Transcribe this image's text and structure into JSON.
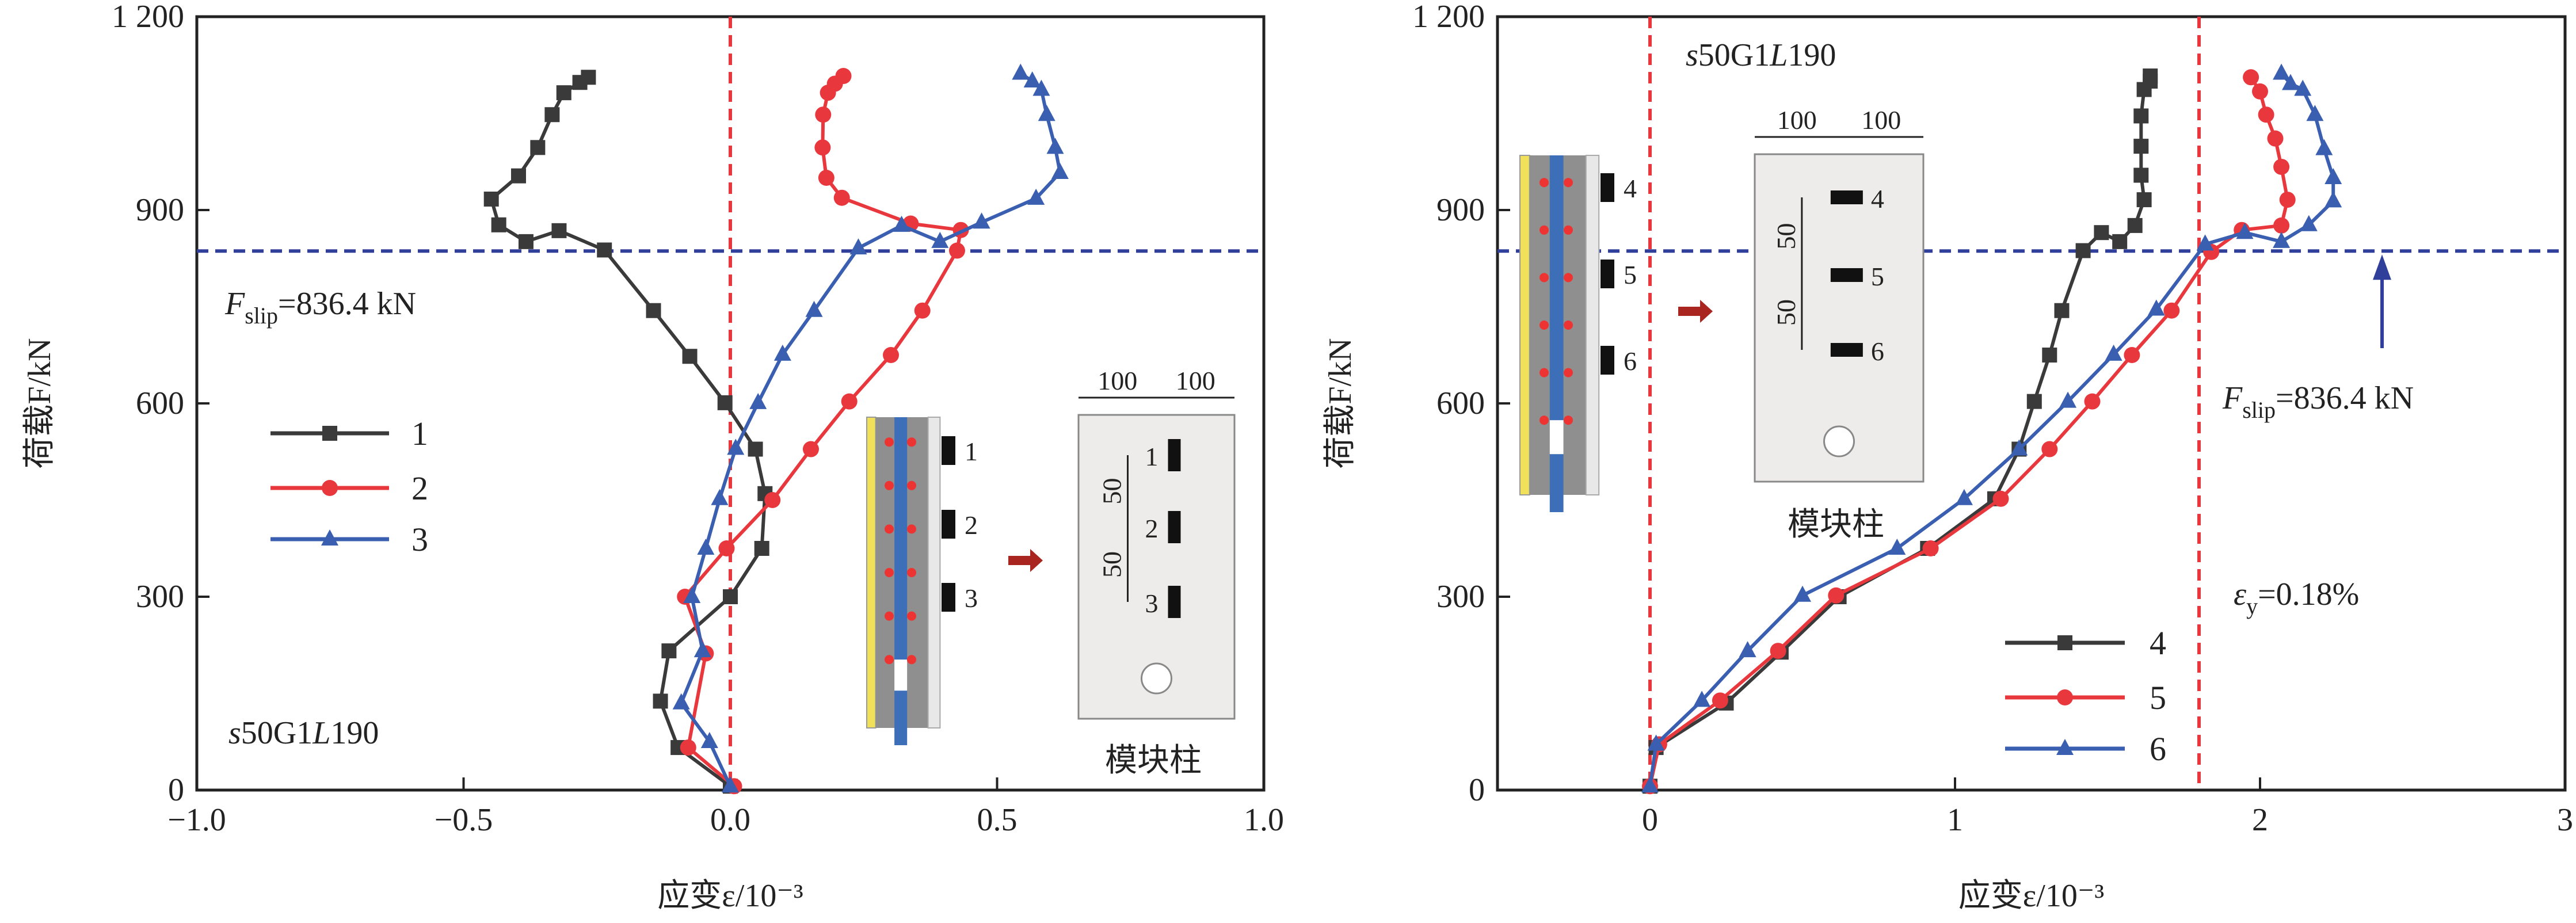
{
  "colors": {
    "series1": "#3a3a3a",
    "series2": "#e8383d",
    "series3": "#3a5fb0",
    "ref_vertical": "#e8383d",
    "ref_horizontal": "#2f3f9a"
  },
  "chart_data": [
    {
      "type": "line",
      "xlabel": "应变ε/10⁻³",
      "ylabel": "荷载F/kN",
      "xlim": [
        -1.0,
        1.0
      ],
      "ylim": [
        0,
        1200
      ],
      "xticks": [
        "−1.0",
        "−0.5",
        "0.0",
        "0.5",
        "1.0"
      ],
      "xtick_values": [
        -1.0,
        -0.5,
        0.0,
        0.5,
        1.0
      ],
      "yticks": [
        "0",
        "300",
        "600",
        "900",
        "1 200"
      ],
      "ytick_values": [
        0,
        300,
        600,
        900,
        1200
      ],
      "legend_position": "left",
      "ref_lines": {
        "vertical_x": [
          0.0
        ],
        "horizontal_y": 836.4
      },
      "annotations": {
        "fslip_F": "F",
        "fslip_sub": "slip",
        "fslip_value": "=836.4 kN",
        "specimen_s": "s",
        "specimen_mid": "50G1",
        "specimen_L": "L",
        "specimen_end": "190"
      },
      "inset": {
        "gauge_labels": [
          "1",
          "2",
          "3"
        ],
        "dim_top": [
          "100",
          "100"
        ],
        "dim_side": [
          "50",
          "50"
        ],
        "caption": "模块柱"
      },
      "series": [
        {
          "name": "1",
          "marker": "square",
          "points": [
            [
              0,
              6
            ],
            [
              -0.098,
              66
            ],
            [
              -0.131,
              138
            ],
            [
              -0.115,
              216
            ],
            [
              0,
              300
            ],
            [
              0.059,
              375
            ],
            [
              0.065,
              460
            ],
            [
              0.047,
              529
            ],
            [
              -0.01,
              601
            ],
            [
              -0.076,
              673
            ],
            [
              -0.144,
              744
            ],
            [
              -0.236,
              838
            ],
            [
              -0.321,
              868
            ],
            [
              -0.383,
              851
            ],
            [
              -0.434,
              877
            ],
            [
              -0.448,
              917
            ],
            [
              -0.397,
              953
            ],
            [
              -0.361,
              997
            ],
            [
              -0.334,
              1048
            ],
            [
              -0.312,
              1082
            ],
            [
              -0.282,
              1098
            ],
            [
              -0.266,
              1106
            ]
          ]
        },
        {
          "name": "2",
          "marker": "circle",
          "points": [
            [
              0.007,
              6
            ],
            [
              -0.079,
              66
            ],
            [
              -0.046,
              212
            ],
            [
              -0.085,
              300
            ],
            [
              -0.007,
              375
            ],
            [
              0.079,
              450
            ],
            [
              0.151,
              529
            ],
            [
              0.223,
              603
            ],
            [
              0.301,
              675
            ],
            [
              0.36,
              744
            ],
            [
              0.425,
              837
            ],
            [
              0.432,
              869
            ],
            [
              0.338,
              879
            ],
            [
              0.209,
              919
            ],
            [
              0.18,
              950
            ],
            [
              0.173,
              997
            ],
            [
              0.174,
              1048
            ],
            [
              0.183,
              1082
            ],
            [
              0.196,
              1096
            ],
            [
              0.212,
              1108
            ]
          ]
        },
        {
          "name": "3",
          "marker": "triangle",
          "points": [
            [
              0,
              6
            ],
            [
              -0.039,
              75
            ],
            [
              -0.092,
              135
            ],
            [
              -0.052,
              216
            ],
            [
              -0.072,
              300
            ],
            [
              -0.046,
              375
            ],
            [
              -0.02,
              452
            ],
            [
              0.01,
              530
            ],
            [
              0.052,
              601
            ],
            [
              0.098,
              676
            ],
            [
              0.157,
              744
            ],
            [
              0.24,
              841
            ],
            [
              0.321,
              876
            ],
            [
              0.393,
              851
            ],
            [
              0.471,
              881
            ],
            [
              0.573,
              918
            ],
            [
              0.618,
              958
            ],
            [
              0.609,
              997
            ],
            [
              0.593,
              1048
            ],
            [
              0.583,
              1087
            ],
            [
              0.566,
              1100
            ],
            [
              0.544,
              1112
            ]
          ]
        }
      ]
    },
    {
      "type": "line",
      "xlabel": "应变ε/10⁻³",
      "ylabel": "荷载F/kN",
      "xlim": [
        -0.5,
        3
      ],
      "ylim": [
        0,
        1200
      ],
      "xticks": [
        "0",
        "1",
        "2",
        "3"
      ],
      "xtick_values": [
        0,
        1,
        2,
        3
      ],
      "yticks": [
        "0",
        "300",
        "600",
        "900",
        "1 200"
      ],
      "ytick_values": [
        0,
        300,
        600,
        900,
        1200
      ],
      "legend_position": "bottom-right",
      "ref_lines": {
        "vertical_x": [
          0.0,
          1.8
        ],
        "horizontal_y": 836.4,
        "arrow_x": 2.4
      },
      "annotations": {
        "fslip_F": "F",
        "fslip_sub": "slip",
        "fslip_value": "=836.4 kN",
        "specimen_s": "s",
        "specimen_mid": "50G1",
        "specimen_L": "L",
        "specimen_end": "190",
        "ey_e": "ε",
        "ey_sub": "y",
        "ey_value": "=0.18%"
      },
      "inset": {
        "gauge_labels": [
          "4",
          "5",
          "6"
        ],
        "dim_top": [
          "100",
          "100"
        ],
        "dim_side": [
          "50",
          "50"
        ],
        "caption": "模块柱"
      },
      "series": [
        {
          "name": "4",
          "marker": "square",
          "points": [
            [
              0,
              6
            ],
            [
              0.02,
              66
            ],
            [
              0.25,
              135
            ],
            [
              0.43,
              214
            ],
            [
              0.62,
              300
            ],
            [
              0.91,
              375
            ],
            [
              1.13,
              452
            ],
            [
              1.21,
              529
            ],
            [
              1.26,
              603
            ],
            [
              1.31,
              675
            ],
            [
              1.35,
              744
            ],
            [
              1.42,
              837
            ],
            [
              1.48,
              865
            ],
            [
              1.54,
              851
            ],
            [
              1.59,
              876
            ],
            [
              1.62,
              916
            ],
            [
              1.61,
              954
            ],
            [
              1.61,
              999
            ],
            [
              1.61,
              1046
            ],
            [
              1.62,
              1087
            ],
            [
              1.64,
              1100
            ],
            [
              1.64,
              1108
            ]
          ]
        },
        {
          "name": "5",
          "marker": "circle",
          "points": [
            [
              0,
              6
            ],
            [
              0.03,
              71
            ],
            [
              0.23,
              139
            ],
            [
              0.42,
              216
            ],
            [
              0.61,
              302
            ],
            [
              0.92,
              375
            ],
            [
              1.15,
              452
            ],
            [
              1.31,
              529
            ],
            [
              1.45,
              603
            ],
            [
              1.58,
              675
            ],
            [
              1.71,
              744
            ],
            [
              1.84,
              835
            ],
            [
              1.94,
              869
            ],
            [
              2.07,
              876
            ],
            [
              2.09,
              916
            ],
            [
              2.07,
              967
            ],
            [
              2.05,
              1011
            ],
            [
              2.02,
              1048
            ],
            [
              2.0,
              1084
            ],
            [
              1.97,
              1106
            ]
          ]
        },
        {
          "name": "6",
          "marker": "triangle",
          "points": [
            [
              0,
              6
            ],
            [
              0.02,
              71
            ],
            [
              0.17,
              139
            ],
            [
              0.32,
              216
            ],
            [
              0.5,
              302
            ],
            [
              0.81,
              375
            ],
            [
              1.03,
              452
            ],
            [
              1.21,
              529
            ],
            [
              1.37,
              603
            ],
            [
              1.52,
              676
            ],
            [
              1.66,
              746
            ],
            [
              1.82,
              847
            ],
            [
              1.95,
              865
            ],
            [
              2.07,
              851
            ],
            [
              2.16,
              877
            ],
            [
              2.24,
              914
            ],
            [
              2.24,
              950
            ],
            [
              2.21,
              995
            ],
            [
              2.18,
              1048
            ],
            [
              2.14,
              1087
            ],
            [
              2.1,
              1096
            ],
            [
              2.07,
              1112
            ]
          ]
        }
      ]
    }
  ]
}
